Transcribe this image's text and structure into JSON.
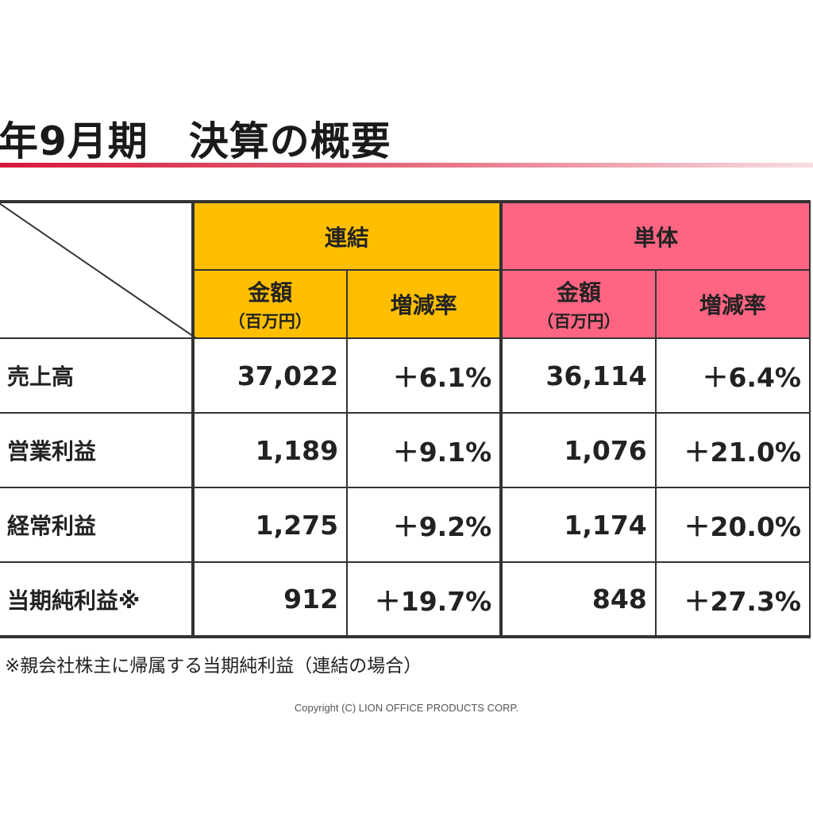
{
  "title": "年9月期　決算の概要",
  "table": {
    "group_headers": {
      "consolidated": "連結",
      "standalone": "単体"
    },
    "col_headers": {
      "amount": "金額",
      "amount_unit": "（百万円）",
      "change_rate": "増減率"
    },
    "rows": [
      {
        "label": "売上高",
        "cons_amount": "37,022",
        "cons_rate": "＋6.1%",
        "stand_amount": "36,114",
        "stand_rate": "＋6.4%"
      },
      {
        "label": "営業利益",
        "cons_amount": "1,189",
        "cons_rate": "＋9.1%",
        "stand_amount": "1,076",
        "stand_rate": "＋21.0%"
      },
      {
        "label": "経常利益",
        "cons_amount": "1,275",
        "cons_rate": "＋9.2%",
        "stand_amount": "1,174",
        "stand_rate": "＋20.0%"
      },
      {
        "label": "当期純利益※",
        "cons_amount": "912",
        "cons_rate": "＋19.7%",
        "stand_amount": "848",
        "stand_rate": "＋27.3%"
      }
    ]
  },
  "footnote": "※親会社株主に帰属する当期純利益（連結の場合）",
  "copyright": "Copyright (C) LION OFFICE PRODUCTS CORP.",
  "colors": {
    "consolidated_header": "#ffbf00",
    "standalone_header": "#ff6482",
    "title_rule": "#d8183a"
  }
}
